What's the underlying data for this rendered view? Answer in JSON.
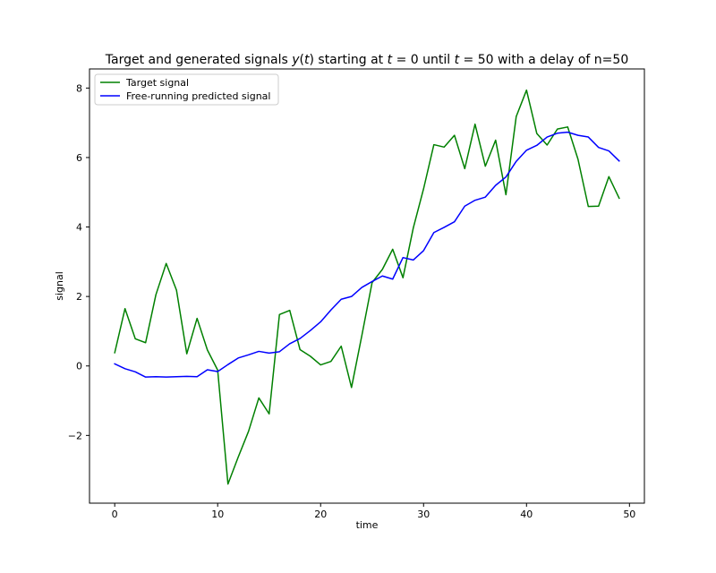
{
  "chart_data": {
    "type": "line",
    "title": "Target and generated signals y(t) starting at t = 0 until t = 50 with a delay of n=50",
    "title_parts": [
      "Target and generated signals ",
      "y",
      "(",
      "t",
      ") starting at ",
      "t",
      " = 0 until ",
      "t",
      " = 50 with a delay of n=50"
    ],
    "xlabel": "time",
    "ylabel": "signal",
    "xlim": [
      -2.45,
      51.45
    ],
    "ylim": [
      -3.95,
      8.55
    ],
    "xticks": [
      0,
      10,
      20,
      30,
      40,
      50
    ],
    "xtick_labels": [
      "0",
      "10",
      "20",
      "30",
      "40",
      "50"
    ],
    "yticks": [
      -2,
      0,
      2,
      4,
      6,
      8
    ],
    "ytick_labels": [
      "−2",
      "0",
      "2",
      "4",
      "6",
      "8"
    ],
    "grid": false,
    "legend_position": "top-left",
    "x": [
      0,
      1,
      2,
      3,
      4,
      5,
      6,
      7,
      8,
      9,
      10,
      11,
      12,
      13,
      14,
      15,
      16,
      17,
      18,
      19,
      20,
      21,
      22,
      23,
      24,
      25,
      26,
      27,
      28,
      29,
      30,
      31,
      32,
      33,
      34,
      35,
      36,
      37,
      38,
      39,
      40,
      41,
      42,
      43,
      44,
      45,
      46,
      47,
      48,
      49
    ],
    "series": [
      {
        "name": "Target signal",
        "color": "#008000",
        "values": [
          0.38,
          1.65,
          0.78,
          0.67,
          2.05,
          2.95,
          2.18,
          0.35,
          1.37,
          0.46,
          -0.12,
          -3.4,
          -2.62,
          -1.88,
          -0.92,
          -1.38,
          1.48,
          1.6,
          0.47,
          0.28,
          0.03,
          0.13,
          0.57,
          -0.62,
          0.87,
          2.4,
          2.78,
          3.36,
          2.54,
          3.97,
          5.1,
          6.37,
          6.3,
          6.64,
          5.68,
          6.96,
          5.75,
          6.5,
          4.93,
          7.18,
          7.94,
          6.69,
          6.36,
          6.82,
          6.88,
          5.95,
          4.59,
          4.6,
          5.45,
          4.83
        ]
      },
      {
        "name": "Free-running predicted signal",
        "color": "#0000ff",
        "values": [
          0.06,
          -0.08,
          -0.17,
          -0.32,
          -0.31,
          -0.32,
          -0.31,
          -0.3,
          -0.31,
          -0.11,
          -0.16,
          0.04,
          0.23,
          0.32,
          0.42,
          0.37,
          0.41,
          0.64,
          0.79,
          1.02,
          1.27,
          1.61,
          1.92,
          2.0,
          2.26,
          2.43,
          2.59,
          2.5,
          3.12,
          3.05,
          3.32,
          3.84,
          3.99,
          4.15,
          4.6,
          4.77,
          4.86,
          5.2,
          5.44,
          5.89,
          6.21,
          6.35,
          6.59,
          6.7,
          6.73,
          6.64,
          6.59,
          6.29,
          6.19,
          5.9
        ]
      }
    ]
  }
}
